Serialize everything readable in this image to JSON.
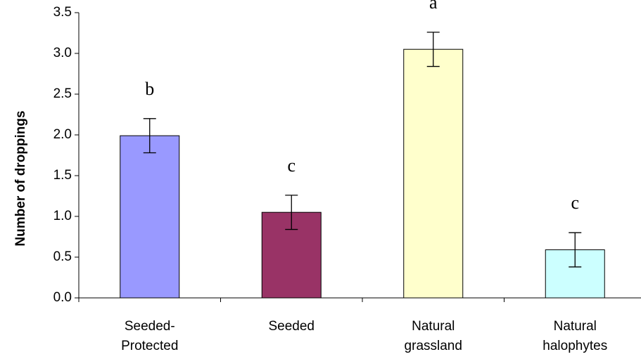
{
  "chart_data": {
    "type": "bar",
    "title": "",
    "xlabel": "",
    "ylabel": "Number of droppings",
    "ylim": [
      0,
      3.5
    ],
    "yticks": [
      "0.0",
      "0.5",
      "1.0",
      "1.5",
      "2.0",
      "2.5",
      "3.0",
      "3.5"
    ],
    "grid": false,
    "categories": [
      [
        "Seeded-",
        "Protected"
      ],
      [
        "Seeded"
      ],
      [
        "Natural",
        "grassland"
      ],
      [
        "Natural",
        "halophytes"
      ]
    ],
    "values": [
      1.99,
      1.05,
      3.05,
      0.59
    ],
    "error": [
      0.21,
      0.21,
      0.21,
      0.21
    ],
    "significance_labels": [
      "b",
      "c",
      "a",
      "c"
    ],
    "colors": [
      "#9999FF",
      "#993366",
      "#FFFFCC",
      "#CCFFFF"
    ]
  }
}
